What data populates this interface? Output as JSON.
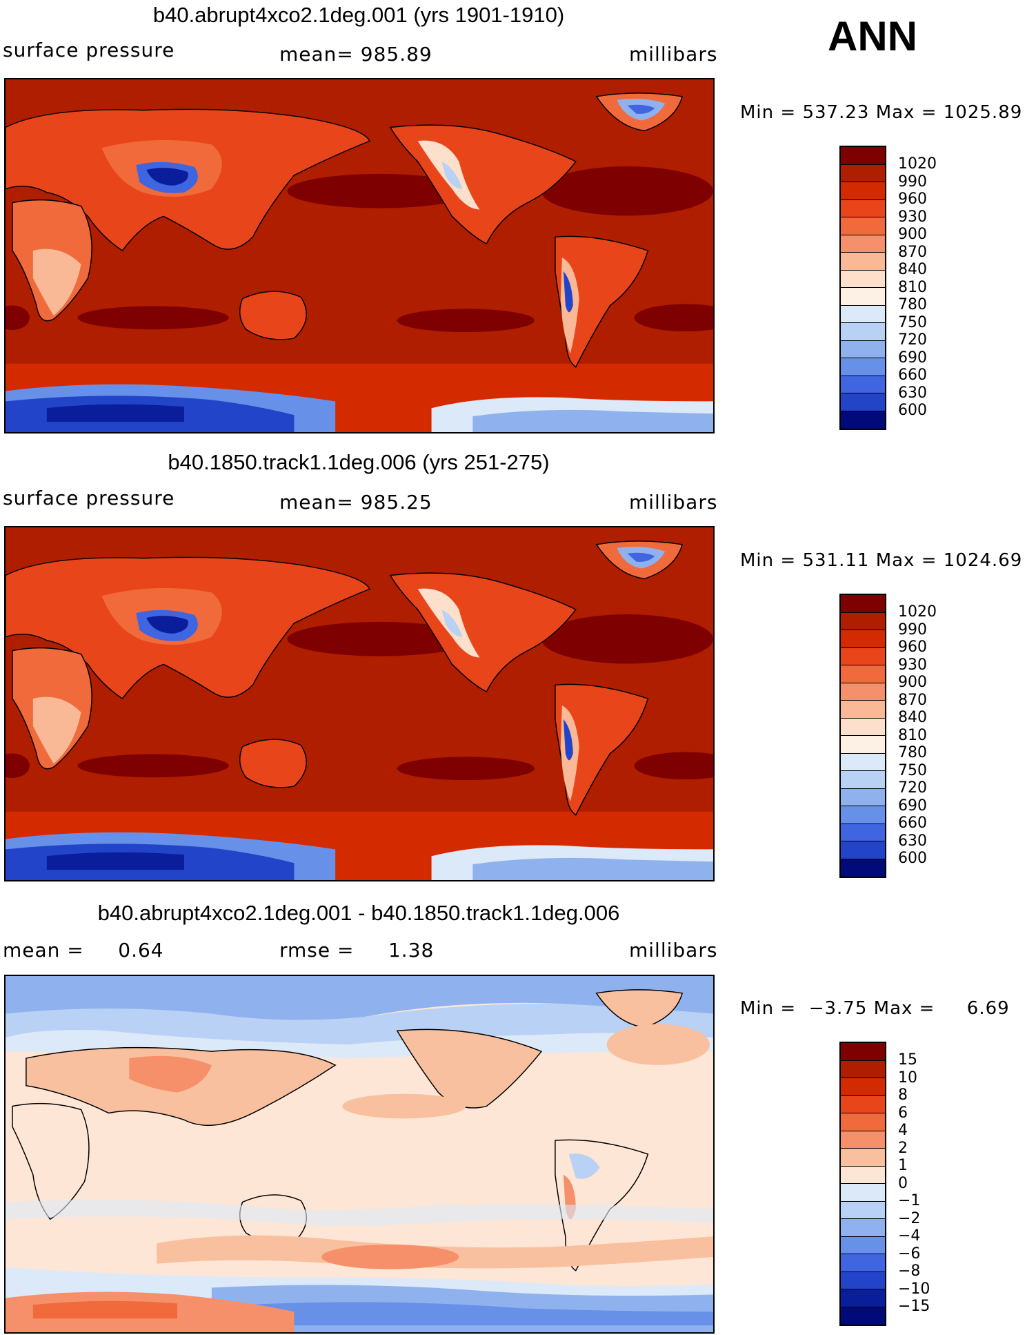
{
  "ann_label": "ANN",
  "panels": [
    {
      "title": "b40.abrupt4xco2.1deg.001 (yrs 1901-1910)",
      "left_label": "surface pressure",
      "center_label": "mean= 985.89",
      "units": "millibars",
      "minmax": "Min = 537.23 Max = 1025.89",
      "colorbar_labels": [
        "1020",
        "990",
        "960",
        "930",
        "900",
        "870",
        "840",
        "810",
        "780",
        "750",
        "720",
        "690",
        "660",
        "630",
        "600"
      ]
    },
    {
      "title": "b40.1850.track1.1deg.006 (yrs 251-275)",
      "left_label": "surface pressure",
      "center_label": "mean= 985.25",
      "units": "millibars",
      "minmax": "Min = 531.11 Max = 1024.69",
      "colorbar_labels": [
        "1020",
        "990",
        "960",
        "930",
        "900",
        "870",
        "840",
        "810",
        "780",
        "750",
        "720",
        "690",
        "660",
        "630",
        "600"
      ]
    },
    {
      "title": "b40.abrupt4xco2.1deg.001 - b40.1850.track1.1deg.006",
      "left_label": "mean =     0.64",
      "center_label": "rmse =     1.38",
      "units": "millibars",
      "minmax": "Min =  −3.75 Max =     6.69",
      "colorbar_labels": [
        "15",
        "10",
        "8",
        "6",
        "4",
        "2",
        "1",
        "0",
        "−1",
        "−2",
        "−4",
        "−6",
        "−8",
        "−10",
        "−15"
      ]
    }
  ],
  "colors": {
    "abs_scale": [
      "#7f0000",
      "#b01e00",
      "#d42a00",
      "#e8461a",
      "#f06a3c",
      "#f5906a",
      "#f9b896",
      "#fde0cc",
      "#fdf0e4",
      "#dce9f8",
      "#b8d1f4",
      "#8fb2ee",
      "#6790e8",
      "#3f66e0",
      "#2244c8",
      "#0a1e9c",
      "#000a78"
    ],
    "diff_scale": [
      "#7f0000",
      "#b01e00",
      "#d42a00",
      "#e8461a",
      "#f06a3c",
      "#f5906a",
      "#f9c0a0",
      "#fde6d6",
      "#dce9f8",
      "#b8d1f4",
      "#8fb2ee",
      "#6790e8",
      "#3f66e0",
      "#2244c8",
      "#0a1e9c",
      "#000a78"
    ]
  }
}
